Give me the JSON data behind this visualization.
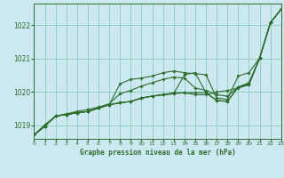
{
  "title": "Graphe pression niveau de la mer (hPa)",
  "background_color": "#cce8f0",
  "grid_color": "#88ccbb",
  "line_color": "#2d6e2d",
  "xlim": [
    0,
    23
  ],
  "ylim": [
    1018.6,
    1022.65
  ],
  "yticks": [
    1019,
    1020,
    1021,
    1022
  ],
  "xticks": [
    0,
    1,
    2,
    3,
    4,
    5,
    6,
    7,
    8,
    9,
    10,
    11,
    12,
    13,
    14,
    15,
    16,
    17,
    18,
    19,
    20,
    21,
    22,
    23
  ],
  "series": [
    [
      1018.72,
      1018.98,
      1019.28,
      1019.33,
      1019.38,
      1019.42,
      1019.52,
      1019.62,
      1020.25,
      1020.38,
      1020.42,
      1020.48,
      1020.58,
      1020.63,
      1020.58,
      1020.55,
      1020.52,
      1019.82,
      1019.78,
      1020.48,
      1020.58,
      1021.02,
      1022.08,
      1022.48
    ],
    [
      1018.72,
      1018.98,
      1019.28,
      1019.33,
      1019.38,
      1019.42,
      1019.52,
      1019.62,
      1019.68,
      1019.72,
      1019.82,
      1019.88,
      1019.92,
      1019.98,
      1019.98,
      1019.92,
      1019.92,
      1020.0,
      1020.05,
      1020.12,
      1020.22,
      1021.02,
      1022.08,
      1022.48
    ],
    [
      1018.72,
      1018.98,
      1019.28,
      1019.33,
      1019.38,
      1019.42,
      1019.52,
      1019.62,
      1019.68,
      1019.72,
      1019.82,
      1019.88,
      1019.92,
      1019.95,
      1019.98,
      1019.98,
      1019.98,
      1019.75,
      1019.72,
      1020.15,
      1020.22,
      1021.02,
      1022.08,
      1022.48
    ],
    [
      1018.72,
      1018.98,
      1019.28,
      1019.33,
      1019.38,
      1019.42,
      1019.52,
      1019.62,
      1019.68,
      1019.72,
      1019.82,
      1019.88,
      1019.92,
      1019.95,
      1020.52,
      1020.58,
      1019.98,
      1019.75,
      1019.72,
      1020.15,
      1020.25,
      1021.02,
      1022.08,
      1022.48
    ],
    [
      1018.72,
      1019.02,
      1019.28,
      1019.35,
      1019.42,
      1019.48,
      1019.55,
      1019.65,
      1019.95,
      1020.05,
      1020.18,
      1020.28,
      1020.38,
      1020.45,
      1020.42,
      1020.12,
      1020.05,
      1019.92,
      1019.88,
      1020.15,
      1020.28,
      1021.02,
      1022.08,
      1022.48
    ]
  ]
}
